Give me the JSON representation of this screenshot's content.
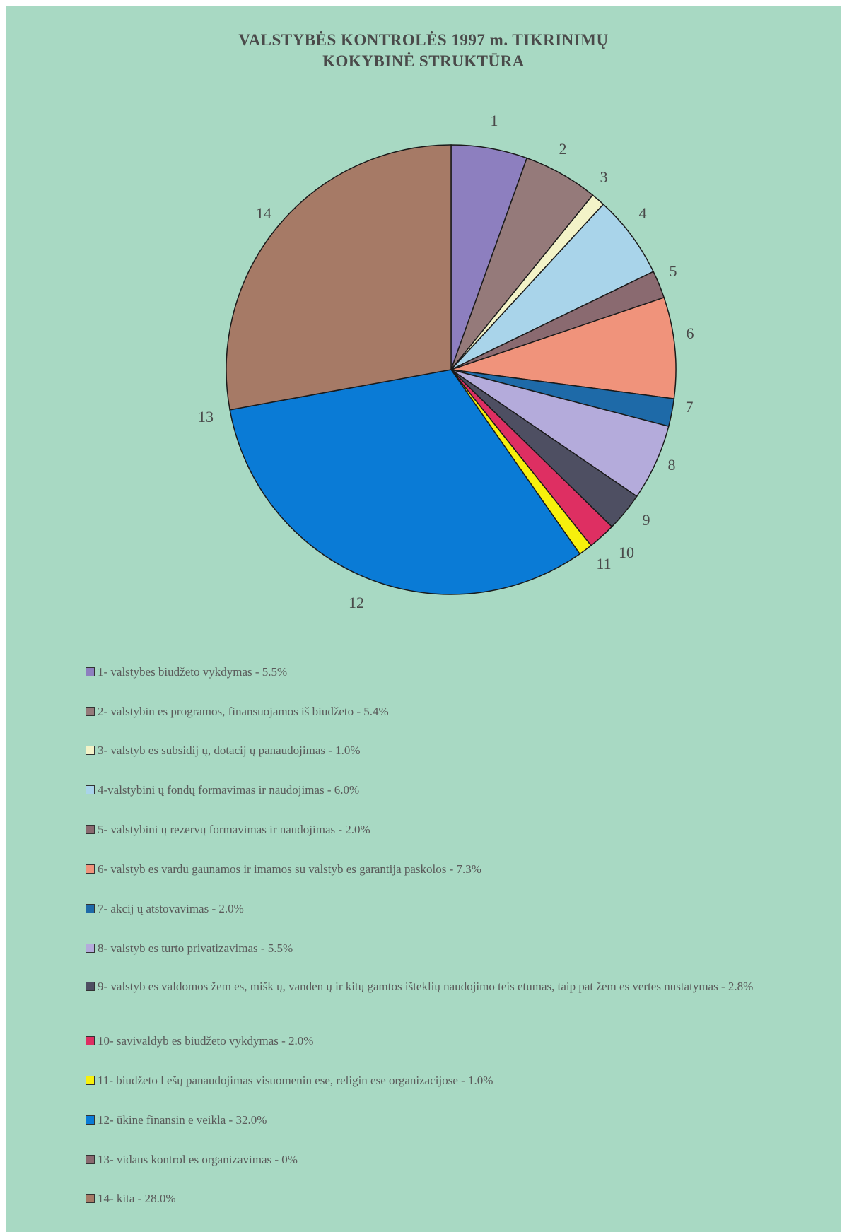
{
  "chart_data": {
    "type": "pie",
    "title": [
      "VALSTYBĖS KONTROLĖS 1997 m. TIKRINIMŲ",
      "KOKYBINĖ STRUKTŪRA"
    ],
    "slices": [
      {
        "label": "1",
        "value": 5.5,
        "color": "#8d7fbf",
        "legend": "1- valstybes biudžeto vykdymas - 5.5%"
      },
      {
        "label": "2",
        "value": 5.4,
        "color": "#957a7a",
        "legend": "2- valstybin es programos, finansuojamos iš biudžeto - 5.4%"
      },
      {
        "label": "3",
        "value": 1.0,
        "color": "#f3f3c8",
        "legend": "3- valstyb es subsidij ų, dotacij ų panaudojimas - 1.0%"
      },
      {
        "label": "4",
        "value": 6.0,
        "color": "#a9d4ea",
        "legend": "4-valstybini ų fondų formavimas ir naudojimas - 6.0%"
      },
      {
        "label": "5",
        "value": 2.0,
        "color": "#8a6a70",
        "legend": "5- valstybini ų rezervų formavimas ir naudojimas - 2.0%"
      },
      {
        "label": "6",
        "value": 7.3,
        "color": "#f0937b",
        "legend": "6- valstyb es vardu gaunamos ir imamos su valstyb es garantija paskolos - 7.3%"
      },
      {
        "label": "7",
        "value": 2.0,
        "color": "#1e6aa8",
        "legend": "7- akcij ų atstovavimas - 2.0%"
      },
      {
        "label": "8",
        "value": 5.5,
        "color": "#b4abdb",
        "legend": "8- valstyb es turto privatizavimas - 5.5%"
      },
      {
        "label": "9",
        "value": 2.8,
        "color": "#4e4f62",
        "legend": "9- valstyb es valdomos žem es, mišk ų, vanden ų ir kitų gamtos išteklių naudojimo teis etumas, taip pat žem es vertes nustatymas - 2.8%"
      },
      {
        "label": "10",
        "value": 2.0,
        "color": "#de2f62",
        "legend": "10- savivaldyb es biudžeto vykdymas - 2.0%"
      },
      {
        "label": "11",
        "value": 1.0,
        "color": "#f7f00c",
        "legend": "11- biudžeto l ešų panaudojimas visuomenin ese, religin ese organizacijose - 1.0%"
      },
      {
        "label": "12",
        "value": 32.0,
        "color": "#0a7bd6",
        "legend": "12- ūkine finansin e veikla - 32.0%"
      },
      {
        "label": "13",
        "value": 0,
        "color": "#8a6a70",
        "legend": "13- vidaus kontrol es organizavimas - 0%"
      },
      {
        "label": "14",
        "value": 28.0,
        "color": "#a67a66",
        "legend": "14- kita - 28.0%"
      }
    ]
  }
}
